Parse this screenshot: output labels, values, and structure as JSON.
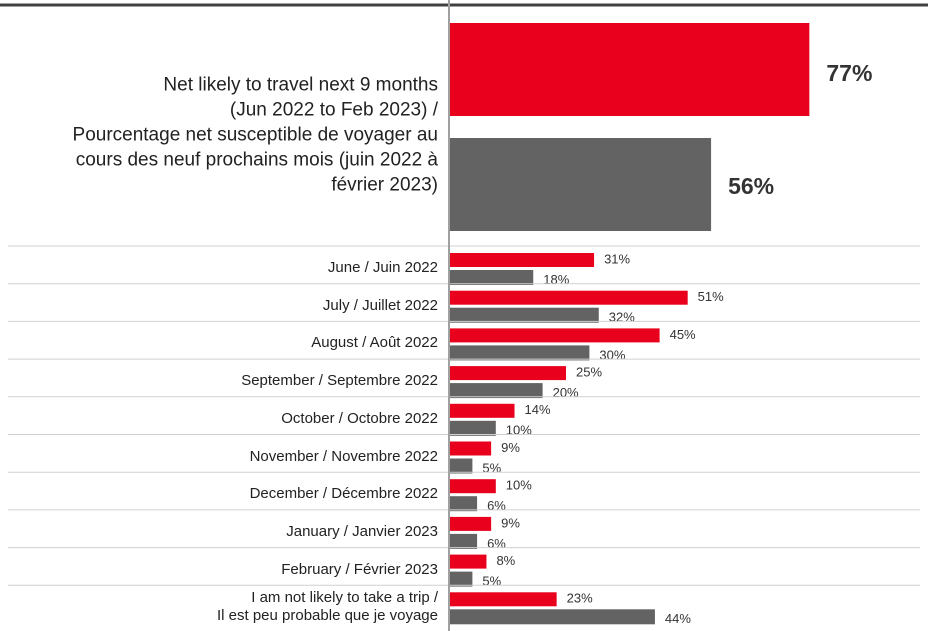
{
  "chart_data": {
    "type": "bar",
    "orientation": "horizontal",
    "categories": [
      "Net likely to travel next 9 months\n(Jun 2022 to Feb 2023) /\nPourcentage net susceptible de voyager au\ncours des neuf prochains mois (juin 2022 à\nfévrier 2023)",
      "June / Juin 2022",
      "July / Juillet 2022",
      "August / Août 2022",
      "September / Septembre 2022",
      "October / Octobre 2022",
      "November / Novembre 2022",
      "December / Décembre 2022",
      "January / Janvier 2023",
      "February / Février  2023",
      "I am not likely to take a trip /\nIl est peu probable que je voyage"
    ],
    "series": [
      {
        "color": "#e8001c",
        "values": [
          77,
          31,
          51,
          45,
          25,
          14,
          9,
          10,
          9,
          8,
          23
        ],
        "value_labels": [
          "77%",
          "31%",
          "51%",
          "45%",
          "25%",
          "14%",
          "9%",
          "10%",
          "9%",
          "8%",
          "23%"
        ]
      },
      {
        "color": "#636363",
        "values": [
          56,
          18,
          32,
          30,
          20,
          10,
          5,
          6,
          6,
          5,
          44
        ],
        "value_labels": [
          "56%",
          "18%",
          "32%",
          "30%",
          "20%",
          "10%",
          "5%",
          "6%",
          "6%",
          "5%",
          "44%"
        ]
      }
    ]
  }
}
